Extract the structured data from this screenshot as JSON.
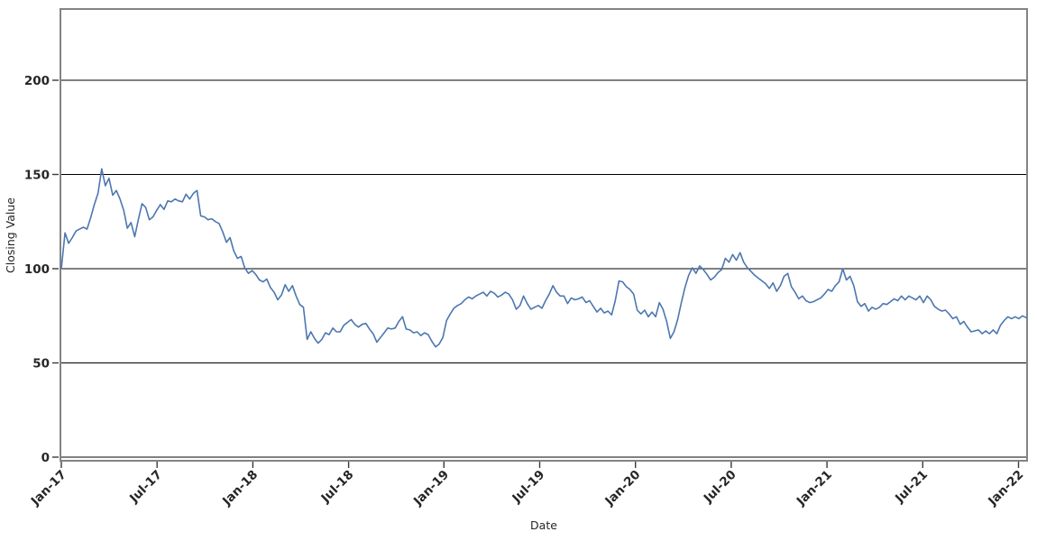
{
  "chart_data": {
    "type": "line",
    "title": "",
    "xlabel": "Date",
    "ylabel": "Closing Value",
    "x_tick_labels": [
      "Jan-17",
      "Jul-17",
      "Jan-18",
      "Jul-18",
      "Jan-19",
      "Jul-19",
      "Jan-20",
      "Jul-20",
      "Jan-21",
      "Jul-21",
      "Jan-22"
    ],
    "x_tick_weeks": [
      0,
      26.1,
      52.2,
      78.3,
      104.3,
      130.4,
      156.5,
      182.6,
      208.7,
      234.8,
      260.9
    ],
    "x_unit": "weeks since Jan-2017, one sample per week",
    "y_ticks": [
      0,
      50,
      100,
      150,
      200
    ],
    "ylim": [
      -2,
      238
    ],
    "grid": "horizontal-only",
    "legend": "none",
    "line_color": "#4c77b0",
    "grid_color": "#000000",
    "spine_color": "#848484",
    "tick_color": "#3a3a3a",
    "label_color": "#262626",
    "background_color": "#ffffff",
    "series": [
      {
        "name": "Closing Value",
        "values": [
          100,
          119,
          113.5,
          116.5,
          120,
          121,
          122,
          121,
          127,
          134,
          140,
          153,
          144,
          148,
          139,
          141.5,
          137,
          131,
          121.5,
          124.5,
          117,
          126,
          134.5,
          132.5,
          126,
          127.5,
          131,
          134,
          131.5,
          136,
          135.5,
          137,
          136,
          135.5,
          139.5,
          137,
          140,
          141.5,
          128,
          127.5,
          126,
          126.5,
          125,
          124,
          119.5,
          114,
          116.5,
          109.5,
          105.5,
          106.5,
          100.5,
          97.5,
          99,
          97,
          94,
          93,
          94.5,
          90,
          87.5,
          83.5,
          86,
          91.5,
          88,
          91,
          85.5,
          81,
          79.5,
          62.5,
          66.5,
          63,
          60.5,
          62.5,
          66,
          65,
          68.5,
          66.5,
          66.5,
          70,
          71.5,
          73,
          70.5,
          69,
          70.5,
          71,
          68,
          65.5,
          61,
          63.5,
          66,
          68.5,
          68,
          68.5,
          72,
          74.5,
          68,
          67.5,
          66,
          66.5,
          64.5,
          66,
          65,
          61.5,
          58.5,
          60,
          63.5,
          72.5,
          76,
          79,
          80.5,
          81.5,
          83.5,
          85,
          84,
          85.5,
          86.5,
          87.5,
          85.5,
          88,
          87,
          85,
          86,
          87.5,
          86.5,
          83.5,
          78.5,
          80.5,
          85.5,
          81.5,
          78.5,
          79.5,
          80.5,
          79,
          83,
          86.5,
          91,
          87.5,
          85.5,
          85.5,
          81.5,
          84.5,
          83.5,
          84,
          85,
          82,
          83,
          80,
          77,
          79,
          76.5,
          77.5,
          75.5,
          83,
          93.5,
          93,
          90.5,
          89,
          86.5,
          78,
          76,
          78,
          74.5,
          77,
          74.5,
          82,
          78.5,
          72,
          63,
          66.5,
          73,
          82,
          90,
          96.5,
          100.5,
          97.5,
          101.5,
          99.5,
          97,
          94,
          95.5,
          98,
          99.5,
          105.5,
          103.5,
          107.5,
          104.5,
          108.5,
          103.5,
          100.5,
          98.5,
          96.5,
          95,
          93.5,
          92,
          89.5,
          92.5,
          88,
          91,
          96,
          97.5,
          90.5,
          87.5,
          84,
          85.5,
          83,
          82,
          82.5,
          83.5,
          84.5,
          86.5,
          89,
          88,
          91,
          93,
          100,
          94,
          96,
          91,
          82.5,
          80,
          81.5,
          77.5,
          79.5,
          78.5,
          79.5,
          81.5,
          81,
          82.5,
          84,
          83,
          85.5,
          83.5,
          85.5,
          84.5,
          83.5,
          85.5,
          82,
          85.5,
          83.5,
          80,
          78.5,
          77.5,
          78,
          76,
          73.5,
          74.5,
          70.5,
          72,
          69,
          66.5,
          67,
          67.5,
          65.5,
          67,
          65.5,
          67.5,
          65.5,
          70,
          72.5,
          74.5,
          73.5,
          74.5,
          73.5,
          75,
          74
        ]
      }
    ]
  }
}
